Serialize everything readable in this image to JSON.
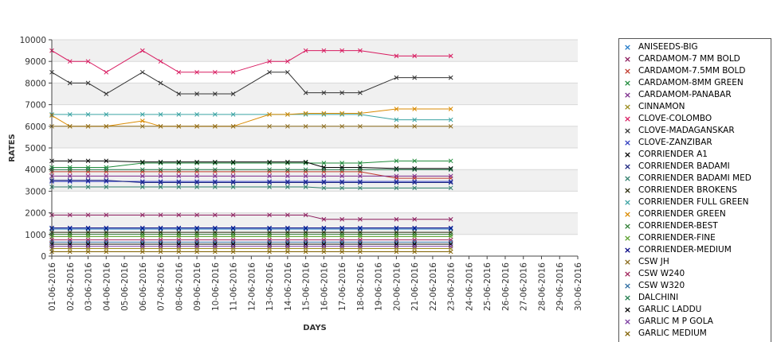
{
  "chart_data": {
    "type": "line",
    "xlabel": "DAYS",
    "ylabel": "RATES",
    "ylim": [
      0,
      10000
    ],
    "yticks": [
      0,
      1000,
      2000,
      3000,
      4000,
      5000,
      6000,
      7000,
      8000,
      9000,
      10000
    ],
    "grid": "alternating horizontal bands",
    "legend_position": "right",
    "categories": [
      "01-06-2016",
      "02-06-2016",
      "03-06-2016",
      "04-06-2016",
      "05-06-2016",
      "06-06-2016",
      "07-06-2016",
      "08-06-2016",
      "09-06-2016",
      "10-06-2016",
      "11-06-2016",
      "12-06-2016",
      "13-06-2016",
      "14-06-2016",
      "15-06-2016",
      "16-06-2016",
      "17-06-2016",
      "18-06-2016",
      "19-06-2016",
      "20-06-2016",
      "21-06-2016",
      "22-06-2016",
      "23-06-2016",
      "24-06-2016",
      "25-06-2016",
      "26-06-2016",
      "27-06-2016",
      "28-06-2016",
      "29-06-2016",
      "30-06-2016"
    ],
    "series": [
      {
        "name": "ANISEEDS-BIG",
        "color": "#1f78c8",
        "values": [
          1250,
          1250,
          1250,
          1250,
          null,
          1250,
          1250,
          1250,
          1250,
          1250,
          1250,
          null,
          1250,
          1250,
          1250,
          1250,
          1250,
          1250,
          null,
          1250,
          1250,
          null,
          1250,
          null,
          null,
          null,
          null,
          null,
          null,
          null
        ]
      },
      {
        "name": "CARDAMOM-7 MM BOLD",
        "color": "#8b1a5c",
        "values": [
          1900,
          1900,
          1900,
          1900,
          null,
          1900,
          1900,
          1900,
          1900,
          1900,
          1900,
          null,
          1900,
          1900,
          1900,
          1700,
          1700,
          1700,
          null,
          1700,
          1700,
          null,
          1700,
          null,
          null,
          null,
          null,
          null,
          null,
          null
        ]
      },
      {
        "name": "CARDAMOM-7.5MM BOLD",
        "color": "#c0392b",
        "values": [
          3900,
          3900,
          3900,
          3900,
          null,
          3900,
          3900,
          3900,
          3900,
          3900,
          3900,
          null,
          3900,
          3900,
          3900,
          3900,
          3900,
          3900,
          null,
          3600,
          3600,
          null,
          3600,
          null,
          null,
          null,
          null,
          null,
          null,
          null
        ]
      },
      {
        "name": "CARDAMOM-8MM GREEN",
        "color": "#1e8a3a",
        "values": [
          4100,
          4100,
          4100,
          4100,
          null,
          4300,
          4300,
          4300,
          4300,
          4300,
          4300,
          null,
          4300,
          4300,
          4300,
          4300,
          4300,
          4300,
          null,
          4400,
          4400,
          null,
          4400,
          null,
          null,
          null,
          null,
          null,
          null,
          null
        ]
      },
      {
        "name": "CARDAMOM-PANABAR",
        "color": "#7b2a8a",
        "values": [
          3700,
          3700,
          3700,
          3700,
          null,
          3700,
          3700,
          3700,
          3700,
          3700,
          3700,
          null,
          3700,
          3700,
          3700,
          3700,
          3700,
          3700,
          null,
          3700,
          3700,
          null,
          3700,
          null,
          null,
          null,
          null,
          null,
          null,
          null
        ]
      },
      {
        "name": "CINNAMON",
        "color": "#9a8a1a",
        "values": [
          350,
          350,
          350,
          350,
          null,
          350,
          350,
          350,
          350,
          350,
          350,
          null,
          350,
          350,
          350,
          350,
          350,
          350,
          null,
          350,
          350,
          null,
          350,
          null,
          null,
          null,
          null,
          null,
          null,
          null
        ]
      },
      {
        "name": "CLOVE-COLOMBO",
        "color": "#d81b60",
        "values": [
          9500,
          9000,
          9000,
          8500,
          null,
          9500,
          9000,
          8500,
          8500,
          8500,
          8500,
          null,
          9000,
          9000,
          9500,
          9500,
          9500,
          9500,
          null,
          9250,
          9250,
          null,
          9250,
          null,
          null,
          null,
          null,
          null,
          null,
          null
        ]
      },
      {
        "name": "CLOVE-MADAGANSKAR",
        "color": "#333333",
        "values": [
          8500,
          8000,
          8000,
          7500,
          null,
          8500,
          8000,
          7500,
          7500,
          7500,
          7500,
          null,
          8500,
          8500,
          7550,
          7550,
          7550,
          7550,
          null,
          8250,
          8250,
          null,
          8250,
          null,
          null,
          null,
          null,
          null,
          null,
          null
        ]
      },
      {
        "name": "CLOVE-ZANZIBAR",
        "color": "#2e3bbf",
        "values": [
          3450,
          3450,
          3450,
          3450,
          null,
          3450,
          3450,
          3450,
          3450,
          3450,
          3450,
          null,
          3450,
          3450,
          3450,
          3450,
          3450,
          3450,
          null,
          3450,
          3450,
          null,
          3450,
          null,
          null,
          null,
          null,
          null,
          null,
          null
        ]
      },
      {
        "name": "CORRIENDER A1",
        "color": "#000000",
        "values": [
          4400,
          4400,
          4400,
          4400,
          null,
          4350,
          4350,
          4350,
          4350,
          4350,
          4350,
          null,
          4350,
          4350,
          4350,
          4100,
          4100,
          4100,
          null,
          4050,
          4050,
          null,
          4050,
          null,
          null,
          null,
          null,
          null,
          null,
          null
        ]
      },
      {
        "name": "CORRIENDER BADAMI",
        "color": "#1a237e",
        "values": [
          3500,
          3500,
          3500,
          3500,
          null,
          3400,
          3400,
          3400,
          3400,
          3400,
          3400,
          null,
          3400,
          3400,
          3400,
          3400,
          3400,
          3400,
          null,
          3400,
          3400,
          null,
          3400,
          null,
          null,
          null,
          null,
          null,
          null,
          null
        ]
      },
      {
        "name": "CORRIENDER BADAMI MED",
        "color": "#2e7d6a",
        "values": [
          3200,
          3200,
          3200,
          3200,
          null,
          3200,
          3200,
          3200,
          3200,
          3200,
          3200,
          null,
          3200,
          3200,
          3200,
          3150,
          3150,
          3150,
          null,
          3150,
          3150,
          null,
          3150,
          null,
          null,
          null,
          null,
          null,
          null,
          null
        ]
      },
      {
        "name": "CORRIENDER BROKENS",
        "color": "#2a2a0a",
        "values": [
          1100,
          1100,
          1100,
          1100,
          null,
          1100,
          1100,
          1100,
          1100,
          1100,
          1100,
          null,
          1100,
          1100,
          1100,
          1100,
          1100,
          1100,
          null,
          1100,
          1100,
          null,
          1100,
          null,
          null,
          null,
          null,
          null,
          null,
          null
        ]
      },
      {
        "name": "CORRIENDER FULL GREEN",
        "color": "#3aa3a3",
        "values": [
          6550,
          6550,
          6550,
          6550,
          null,
          6550,
          6550,
          6550,
          6550,
          6550,
          6550,
          null,
          6550,
          6550,
          6550,
          6550,
          6550,
          6550,
          null,
          6300,
          6300,
          null,
          6300,
          null,
          null,
          null,
          null,
          null,
          null,
          null
        ]
      },
      {
        "name": "CORRIENDER GREEN",
        "color": "#d98a00",
        "values": [
          6500,
          6000,
          6000,
          6000,
          null,
          6250,
          6000,
          6000,
          6000,
          6000,
          6000,
          null,
          6550,
          6550,
          6600,
          6600,
          6600,
          6600,
          null,
          6800,
          6800,
          null,
          6800,
          null,
          null,
          null,
          null,
          null,
          null,
          null
        ]
      },
      {
        "name": "CORRIENDER-BEST",
        "color": "#2e7d32",
        "values": [
          1000,
          1000,
          1000,
          1000,
          null,
          1000,
          1000,
          1000,
          1000,
          1000,
          1000,
          null,
          1000,
          1000,
          1000,
          1000,
          1000,
          1000,
          null,
          1000,
          1000,
          null,
          1000,
          null,
          null,
          null,
          null,
          null,
          null,
          null
        ]
      },
      {
        "name": "CORRIENDER-FINE",
        "color": "#5aa02c",
        "values": [
          900,
          900,
          900,
          900,
          null,
          900,
          900,
          900,
          900,
          900,
          900,
          null,
          900,
          900,
          900,
          900,
          900,
          900,
          null,
          900,
          900,
          null,
          900,
          null,
          null,
          null,
          null,
          null,
          null,
          null
        ]
      },
      {
        "name": "CORRIENDER-MEDIUM",
        "color": "#000080",
        "values": [
          1300,
          1300,
          1300,
          1300,
          null,
          1300,
          1300,
          1300,
          1300,
          1300,
          1300,
          null,
          1300,
          1300,
          1300,
          1300,
          1300,
          1300,
          null,
          1300,
          1300,
          null,
          1300,
          null,
          null,
          null,
          null,
          null,
          null,
          null
        ]
      },
      {
        "name": "CSW JH",
        "color": "#8a6a1a",
        "values": [
          6000,
          6000,
          6000,
          6000,
          null,
          6000,
          6000,
          6000,
          6000,
          6000,
          6000,
          null,
          6000,
          6000,
          6000,
          6000,
          6000,
          6000,
          null,
          6000,
          6000,
          null,
          6000,
          null,
          null,
          null,
          null,
          null,
          null,
          null
        ]
      },
      {
        "name": "CSW W240",
        "color": "#a0225a",
        "values": [
          750,
          750,
          750,
          750,
          null,
          750,
          750,
          750,
          750,
          750,
          750,
          null,
          750,
          750,
          750,
          750,
          750,
          750,
          null,
          750,
          750,
          null,
          750,
          null,
          null,
          null,
          null,
          null,
          null,
          null
        ]
      },
      {
        "name": "CSW W320",
        "color": "#2a6aa0",
        "values": [
          650,
          650,
          650,
          650,
          null,
          650,
          650,
          650,
          650,
          650,
          650,
          null,
          650,
          650,
          650,
          650,
          650,
          650,
          null,
          650,
          650,
          null,
          650,
          null,
          null,
          null,
          null,
          null,
          null,
          null
        ]
      },
      {
        "name": "DALCHINI",
        "color": "#1e7a4a",
        "values": [
          4000,
          4000,
          4000,
          4000,
          null,
          4000,
          4000,
          4000,
          4000,
          4000,
          4000,
          null,
          4000,
          4000,
          4000,
          4000,
          4000,
          4000,
          null,
          4000,
          4000,
          null,
          4000,
          null,
          null,
          null,
          null,
          null,
          null,
          null
        ]
      },
      {
        "name": "GARLIC LADDU",
        "color": "#000000",
        "values": [
          550,
          550,
          550,
          550,
          null,
          550,
          550,
          550,
          550,
          550,
          550,
          null,
          550,
          550,
          550,
          550,
          550,
          550,
          null,
          550,
          550,
          null,
          550,
          null,
          null,
          null,
          null,
          null,
          null,
          null
        ]
      },
      {
        "name": "GARLIC M P GOLA",
        "color": "#7a3aa0",
        "values": [
          450,
          450,
          450,
          450,
          null,
          450,
          450,
          450,
          450,
          450,
          450,
          null,
          450,
          450,
          450,
          450,
          450,
          450,
          null,
          450,
          450,
          null,
          450,
          null,
          null,
          null,
          null,
          null,
          null,
          null
        ]
      },
      {
        "name": "GARLIC MEDIUM",
        "color": "#806000",
        "values": [
          200,
          200,
          200,
          200,
          null,
          200,
          200,
          200,
          200,
          200,
          200,
          null,
          200,
          200,
          200,
          200,
          200,
          200,
          null,
          200,
          200,
          null,
          200,
          null,
          null,
          null,
          null,
          null,
          null,
          null
        ]
      }
    ]
  }
}
